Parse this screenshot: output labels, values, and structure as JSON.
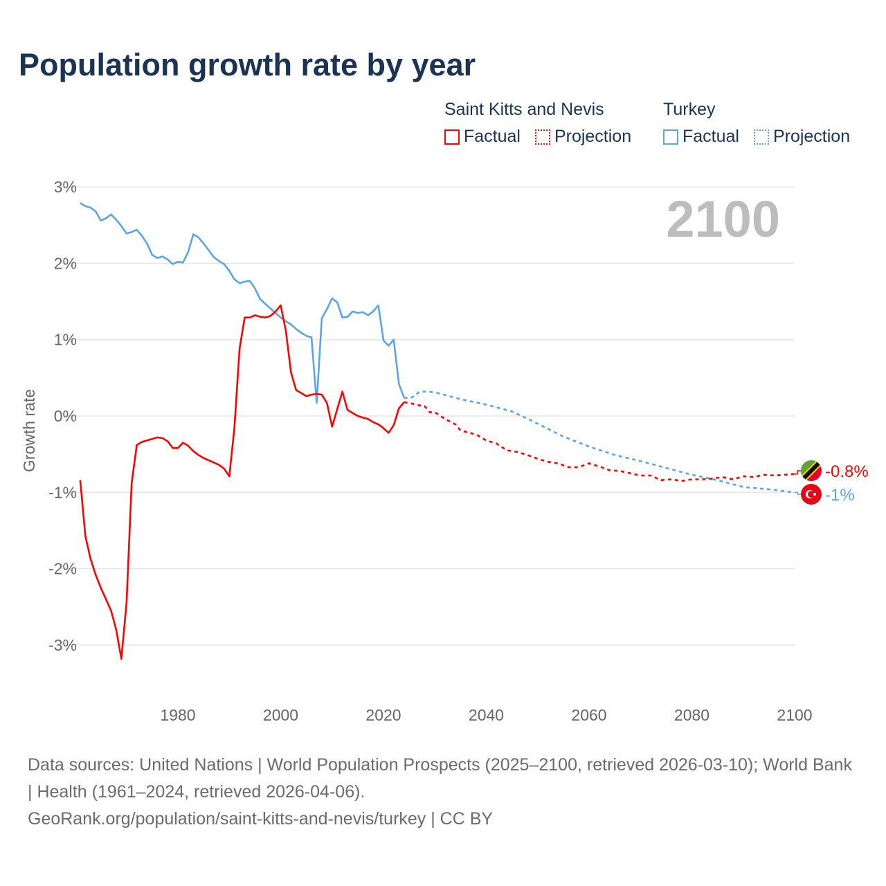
{
  "title": "Population growth rate by year",
  "legend": {
    "groups": [
      {
        "name": "Saint Kitts and Nevis",
        "color": "#ff0000",
        "factual_label": "Factual",
        "projection_label": "Projection"
      },
      {
        "name": "Turkey",
        "color": "#5ba4e6",
        "factual_label": "Factual",
        "projection_label": "Projection"
      }
    ]
  },
  "footer": {
    "sources": "Data sources: United Nations | World Population Prospects (2025–2100, retrieved 2026-03-10); World Bank | Health (1961–2024, retrieved 2026-04-06).",
    "link": "GeoRank.org/population/saint-kitts-and-nevis/turkey | CC BY"
  },
  "chart_data": {
    "type": "line",
    "title": "Population growth rate by year",
    "xlabel": "",
    "ylabel": "Growth rate",
    "xlim": [
      1961,
      2100
    ],
    "ylim": [
      -3.6,
      3.0
    ],
    "x_ticks": [
      1980,
      2000,
      2020,
      2040,
      2060,
      2080,
      2100
    ],
    "x_tick_labels": [
      "1980",
      "2000",
      "2020",
      "2040",
      "2060",
      "2080",
      "2100"
    ],
    "y_ticks": [
      3,
      2,
      1,
      0,
      -1,
      -2,
      -3
    ],
    "y_tick_labels": [
      "3%",
      "2%",
      "1%",
      "0%",
      "-1%",
      "-2%",
      "-3%"
    ],
    "grid": true,
    "legend_position": "top-right",
    "year_watermark": "2100",
    "series": [
      {
        "name": "Saint Kitts and Nevis",
        "color": "#ff0000",
        "end_label": "-0.8%",
        "factual": [
          [
            1961,
            -0.84
          ],
          [
            1962,
            -1.57
          ],
          [
            1963,
            -1.87
          ],
          [
            1964,
            -2.08
          ],
          [
            1965,
            -2.25
          ],
          [
            1966,
            -2.4
          ],
          [
            1967,
            -2.55
          ],
          [
            1968,
            -2.8
          ],
          [
            1969,
            -3.18
          ],
          [
            1970,
            -2.45
          ],
          [
            1971,
            -0.88
          ],
          [
            1972,
            -0.38
          ],
          [
            1973,
            -0.34
          ],
          [
            1974,
            -0.32
          ],
          [
            1975,
            -0.3
          ],
          [
            1976,
            -0.28
          ],
          [
            1977,
            -0.29
          ],
          [
            1978,
            -0.33
          ],
          [
            1979,
            -0.42
          ],
          [
            1980,
            -0.42
          ],
          [
            1981,
            -0.35
          ],
          [
            1982,
            -0.39
          ],
          [
            1983,
            -0.46
          ],
          [
            1984,
            -0.51
          ],
          [
            1985,
            -0.55
          ],
          [
            1986,
            -0.58
          ],
          [
            1987,
            -0.61
          ],
          [
            1988,
            -0.64
          ],
          [
            1989,
            -0.69
          ],
          [
            1990,
            -0.79
          ],
          [
            1991,
            -0.15
          ],
          [
            1992,
            0.88
          ],
          [
            1993,
            1.29
          ],
          [
            1994,
            1.29
          ],
          [
            1995,
            1.32
          ],
          [
            1996,
            1.3
          ],
          [
            1997,
            1.29
          ],
          [
            1998,
            1.31
          ],
          [
            1999,
            1.37
          ],
          [
            2000,
            1.45
          ],
          [
            2001,
            1.12
          ],
          [
            2002,
            0.57
          ],
          [
            2003,
            0.34
          ],
          [
            2004,
            0.3
          ],
          [
            2005,
            0.26
          ],
          [
            2006,
            0.28
          ],
          [
            2007,
            0.29
          ],
          [
            2008,
            0.28
          ],
          [
            2009,
            0.17
          ],
          [
            2010,
            -0.14
          ],
          [
            2011,
            0.09
          ],
          [
            2012,
            0.32
          ],
          [
            2013,
            0.08
          ],
          [
            2014,
            0.04
          ],
          [
            2015,
            0.0
          ],
          [
            2016,
            -0.02
          ],
          [
            2017,
            -0.04
          ],
          [
            2018,
            -0.08
          ],
          [
            2019,
            -0.11
          ],
          [
            2020,
            -0.16
          ],
          [
            2021,
            -0.22
          ],
          [
            2022,
            -0.12
          ],
          [
            2023,
            0.1
          ],
          [
            2024,
            0.18
          ]
        ],
        "projection": [
          [
            2024,
            0.18
          ],
          [
            2025,
            0.17
          ],
          [
            2027,
            0.14
          ],
          [
            2028,
            0.13
          ],
          [
            2029,
            0.05
          ],
          [
            2030,
            0.05
          ],
          [
            2032,
            -0.04
          ],
          [
            2034,
            -0.11
          ],
          [
            2035,
            -0.19
          ],
          [
            2038,
            -0.24
          ],
          [
            2040,
            -0.32
          ],
          [
            2042,
            -0.36
          ],
          [
            2044,
            -0.45
          ],
          [
            2046,
            -0.47
          ],
          [
            2048,
            -0.51
          ],
          [
            2050,
            -0.56
          ],
          [
            2052,
            -0.6
          ],
          [
            2054,
            -0.62
          ],
          [
            2056,
            -0.67
          ],
          [
            2058,
            -0.67
          ],
          [
            2060,
            -0.62
          ],
          [
            2062,
            -0.66
          ],
          [
            2064,
            -0.71
          ],
          [
            2066,
            -0.72
          ],
          [
            2068,
            -0.75
          ],
          [
            2070,
            -0.78
          ],
          [
            2072,
            -0.78
          ],
          [
            2074,
            -0.84
          ],
          [
            2076,
            -0.83
          ],
          [
            2078,
            -0.85
          ],
          [
            2080,
            -0.83
          ],
          [
            2082,
            -0.83
          ],
          [
            2084,
            -0.82
          ],
          [
            2086,
            -0.8
          ],
          [
            2088,
            -0.83
          ],
          [
            2090,
            -0.79
          ],
          [
            2092,
            -0.8
          ],
          [
            2094,
            -0.77
          ],
          [
            2096,
            -0.78
          ],
          [
            2098,
            -0.77
          ],
          [
            2100,
            -0.76
          ]
        ]
      },
      {
        "name": "Turkey",
        "color": "#5ba4e6",
        "end_label": "-1%",
        "factual": [
          [
            1961,
            2.79
          ],
          [
            1962,
            2.75
          ],
          [
            1963,
            2.73
          ],
          [
            1964,
            2.68
          ],
          [
            1965,
            2.56
          ],
          [
            1966,
            2.59
          ],
          [
            1967,
            2.64
          ],
          [
            1968,
            2.57
          ],
          [
            1969,
            2.49
          ],
          [
            1970,
            2.39
          ],
          [
            1971,
            2.41
          ],
          [
            1972,
            2.44
          ],
          [
            1973,
            2.36
          ],
          [
            1974,
            2.26
          ],
          [
            1975,
            2.11
          ],
          [
            1976,
            2.07
          ],
          [
            1977,
            2.09
          ],
          [
            1978,
            2.05
          ],
          [
            1979,
            1.99
          ],
          [
            1980,
            2.02
          ],
          [
            1981,
            2.01
          ],
          [
            1982,
            2.15
          ],
          [
            1983,
            2.38
          ],
          [
            1984,
            2.34
          ],
          [
            1985,
            2.26
          ],
          [
            1986,
            2.17
          ],
          [
            1987,
            2.08
          ],
          [
            1988,
            2.03
          ],
          [
            1989,
            1.99
          ],
          [
            1990,
            1.9
          ],
          [
            1991,
            1.79
          ],
          [
            1992,
            1.74
          ],
          [
            1993,
            1.76
          ],
          [
            1994,
            1.77
          ],
          [
            1995,
            1.67
          ],
          [
            1996,
            1.53
          ],
          [
            1997,
            1.47
          ],
          [
            1998,
            1.41
          ],
          [
            1999,
            1.35
          ],
          [
            2000,
            1.29
          ],
          [
            2001,
            1.24
          ],
          [
            2002,
            1.2
          ],
          [
            2003,
            1.14
          ],
          [
            2004,
            1.09
          ],
          [
            2005,
            1.05
          ],
          [
            2006,
            1.03
          ],
          [
            2007,
            0.17
          ],
          [
            2008,
            1.28
          ],
          [
            2009,
            1.4
          ],
          [
            2010,
            1.54
          ],
          [
            2011,
            1.49
          ],
          [
            2012,
            1.29
          ],
          [
            2013,
            1.3
          ],
          [
            2014,
            1.37
          ],
          [
            2015,
            1.35
          ],
          [
            2016,
            1.36
          ],
          [
            2017,
            1.32
          ],
          [
            2018,
            1.37
          ],
          [
            2019,
            1.45
          ],
          [
            2020,
            0.99
          ],
          [
            2021,
            0.92
          ],
          [
            2022,
            1.0
          ],
          [
            2023,
            0.42
          ],
          [
            2024,
            0.24
          ]
        ],
        "projection": [
          [
            2024,
            0.24
          ],
          [
            2025,
            0.23
          ],
          [
            2026,
            0.26
          ],
          [
            2027,
            0.32
          ],
          [
            2028,
            0.32
          ],
          [
            2030,
            0.31
          ],
          [
            2035,
            0.22
          ],
          [
            2040,
            0.15
          ],
          [
            2045,
            0.06
          ],
          [
            2050,
            -0.1
          ],
          [
            2055,
            -0.27
          ],
          [
            2060,
            -0.4
          ],
          [
            2065,
            -0.51
          ],
          [
            2070,
            -0.59
          ],
          [
            2075,
            -0.68
          ],
          [
            2080,
            -0.77
          ],
          [
            2085,
            -0.84
          ],
          [
            2090,
            -0.93
          ],
          [
            2095,
            -0.96
          ],
          [
            2100,
            -1.0
          ]
        ]
      }
    ]
  }
}
